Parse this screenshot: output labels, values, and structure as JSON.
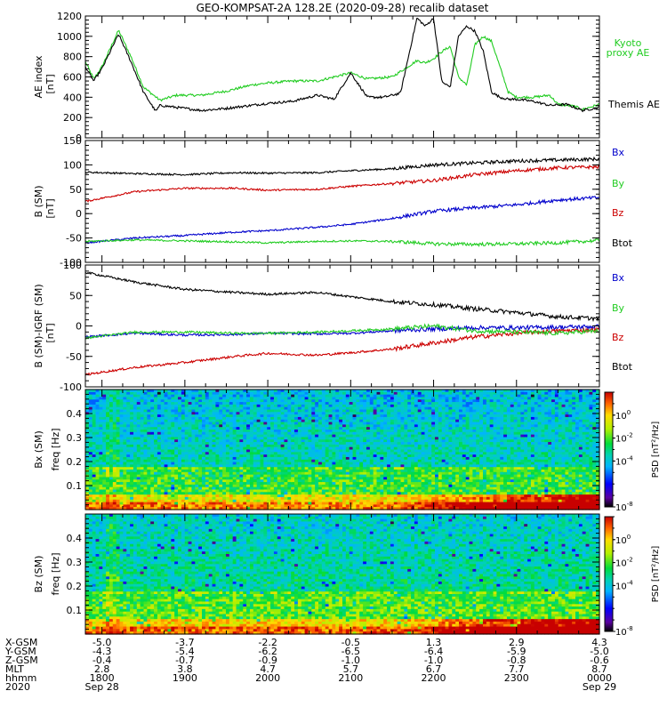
{
  "title": "GEO-KOMPSAT-2A 128.2E (2020-09-28) recalib dataset",
  "colors": {
    "bx": "#0000cc",
    "by": "#22cc22",
    "bz": "#cc0000",
    "btot": "#000000",
    "kyoto": "#22cc22",
    "themis": "#000000"
  },
  "chart_data": [
    {
      "type": "line",
      "ylabel": "AE index",
      "yunit": "[nT]",
      "ylim": [
        0,
        1200
      ],
      "yticks": [
        0,
        200,
        400,
        600,
        800,
        1000,
        1200
      ],
      "xlim": [
        17.8,
        24.0
      ],
      "grid": false,
      "legend_position": "right",
      "series": [
        {
          "name": "Kyoto proxy AE",
          "color": "green",
          "x": [
            17.8,
            17.9,
            18.0,
            18.2,
            18.35,
            18.5,
            18.7,
            18.9,
            19.2,
            19.5,
            19.8,
            20.0,
            20.3,
            20.6,
            20.9,
            21.0,
            21.2,
            21.5,
            21.8,
            21.9,
            22.0,
            22.1,
            22.2,
            22.3,
            22.4,
            22.5,
            22.6,
            22.7,
            22.8,
            22.9,
            23.0,
            23.2,
            23.4,
            23.5,
            23.7,
            23.8,
            24.0
          ],
          "y": [
            750,
            580,
            700,
            1060,
            800,
            500,
            370,
            420,
            420,
            460,
            520,
            540,
            560,
            560,
            620,
            640,
            580,
            600,
            760,
            740,
            780,
            850,
            900,
            600,
            520,
            920,
            1000,
            950,
            700,
            450,
            400,
            400,
            420,
            330,
            310,
            280,
            330
          ]
        },
        {
          "name": "Themis AE",
          "color": "black",
          "x": [
            17.8,
            17.9,
            18.0,
            18.2,
            18.35,
            18.5,
            18.65,
            18.7,
            18.9,
            19.2,
            19.5,
            19.8,
            20.0,
            20.3,
            20.6,
            20.8,
            21.0,
            21.2,
            21.4,
            21.6,
            21.8,
            21.9,
            22.0,
            22.1,
            22.2,
            22.3,
            22.4,
            22.5,
            22.6,
            22.7,
            22.8,
            22.9,
            23.0,
            23.2,
            23.4,
            23.6,
            23.8,
            24.0
          ],
          "y": [
            700,
            560,
            680,
            1020,
            750,
            450,
            260,
            320,
            300,
            270,
            290,
            320,
            340,
            360,
            420,
            380,
            640,
            400,
            400,
            440,
            1180,
            1100,
            1180,
            550,
            500,
            1000,
            1100,
            1050,
            850,
            450,
            400,
            380,
            380,
            360,
            320,
            330,
            270,
            300
          ]
        }
      ]
    },
    {
      "type": "line",
      "ylabel": "B (SM)",
      "yunit": "[nT]",
      "ylim": [
        -100,
        150
      ],
      "yticks": [
        -100,
        -50,
        0,
        50,
        100,
        150
      ],
      "xlim": [
        17.8,
        24.0
      ],
      "grid": false,
      "legend_position": "right",
      "series": [
        {
          "name": "Bx",
          "color": "blue",
          "x": [
            17.8,
            18.4,
            19.0,
            19.6,
            20.0,
            20.6,
            21.0,
            21.5,
            22.0,
            22.5,
            23.0,
            23.5,
            24.0
          ],
          "y": [
            -60,
            -50,
            -45,
            -38,
            -35,
            -28,
            -22,
            -10,
            5,
            12,
            18,
            28,
            33
          ]
        },
        {
          "name": "By",
          "color": "green",
          "x": [
            17.8,
            18.4,
            19.0,
            19.6,
            20.0,
            20.6,
            21.0,
            21.5,
            22.0,
            22.5,
            23.0,
            23.5,
            24.0
          ],
          "y": [
            -57,
            -54,
            -56,
            -58,
            -60,
            -57,
            -56,
            -57,
            -62,
            -63,
            -62,
            -60,
            -55
          ]
        },
        {
          "name": "Bz",
          "color": "red",
          "x": [
            17.8,
            18.4,
            19.0,
            19.6,
            20.0,
            20.6,
            21.0,
            21.5,
            22.0,
            22.5,
            23.0,
            23.5,
            24.0
          ],
          "y": [
            25,
            45,
            52,
            52,
            48,
            50,
            56,
            62,
            68,
            80,
            88,
            94,
            96
          ]
        },
        {
          "name": "Btot",
          "color": "black",
          "x": [
            17.8,
            18.4,
            19.0,
            19.6,
            20.0,
            20.6,
            21.0,
            21.5,
            22.0,
            22.5,
            23.0,
            23.5,
            24.0
          ],
          "y": [
            85,
            82,
            80,
            84,
            83,
            84,
            88,
            92,
            100,
            104,
            108,
            110,
            112
          ]
        }
      ]
    },
    {
      "type": "line",
      "ylabel": "B (SM)-IGRF (SM)",
      "yunit": "[nT]",
      "ylim": [
        -100,
        100
      ],
      "yticks": [
        -100,
        -50,
        0,
        50,
        100
      ],
      "xlim": [
        17.8,
        24.0
      ],
      "grid": false,
      "legend_position": "right",
      "series": [
        {
          "name": "Bx",
          "color": "blue",
          "x": [
            17.8,
            18.4,
            19.0,
            19.6,
            20.0,
            20.6,
            21.0,
            21.5,
            22.0,
            22.5,
            23.0,
            23.5,
            24.0
          ],
          "y": [
            -18,
            -12,
            -15,
            -14,
            -12,
            -13,
            -12,
            -8,
            -5,
            -3,
            -3,
            -2,
            -1
          ]
        },
        {
          "name": "By",
          "color": "green",
          "x": [
            17.8,
            18.4,
            19.0,
            19.6,
            20.0,
            20.6,
            21.0,
            21.5,
            22.0,
            22.5,
            23.0,
            23.5,
            24.0
          ],
          "y": [
            -20,
            -10,
            -10,
            -12,
            -12,
            -10,
            -8,
            -5,
            0,
            -8,
            -10,
            -12,
            -8
          ]
        },
        {
          "name": "Bz",
          "color": "red",
          "x": [
            17.8,
            18.4,
            19.0,
            19.6,
            20.0,
            20.6,
            21.0,
            21.5,
            22.0,
            22.5,
            23.0,
            23.5,
            24.0
          ],
          "y": [
            -80,
            -68,
            -60,
            -50,
            -45,
            -48,
            -44,
            -38,
            -28,
            -18,
            -12,
            -8,
            -6
          ]
        },
        {
          "name": "Btot",
          "color": "black",
          "x": [
            17.8,
            18.4,
            19.0,
            19.6,
            20.0,
            20.6,
            21.0,
            21.5,
            22.0,
            22.5,
            23.0,
            23.5,
            24.0
          ],
          "y": [
            88,
            72,
            60,
            55,
            52,
            55,
            48,
            40,
            35,
            28,
            22,
            15,
            12
          ]
        }
      ]
    },
    {
      "type": "heatmap",
      "ylabel": "Bx (SM)",
      "y2label": "freq",
      "yunit": "[Hz]",
      "ylim": [
        0,
        0.5
      ],
      "yticks": [
        0.1,
        0.2,
        0.3,
        0.4
      ],
      "xlim": [
        17.8,
        24.0
      ],
      "colorbar": {
        "label": "PSD [nT²/Hz]",
        "log10_range": [
          -8,
          2
        ],
        "tick_exponents": [
          0,
          -2,
          -4,
          -8
        ]
      }
    },
    {
      "type": "heatmap",
      "ylabel": "Bz (SM)",
      "y2label": "freq",
      "yunit": "[Hz]",
      "ylim": [
        0,
        0.5
      ],
      "yticks": [
        0.1,
        0.2,
        0.3,
        0.4
      ],
      "xlim": [
        17.8,
        24.0
      ],
      "colorbar": {
        "label": "PSD [nT²/Hz]",
        "log10_range": [
          -8,
          2
        ],
        "tick_exponents": [
          0,
          -2,
          -4,
          -8
        ]
      }
    }
  ],
  "legend_labels": {
    "ae_kyoto_1": "Kyoto",
    "ae_kyoto_2": "proxy AE",
    "ae_themis": "Themis AE",
    "bx": "Bx",
    "by": "By",
    "bz": "Bz",
    "btot": "Btot"
  },
  "time_axis": {
    "row_labels": [
      "X-GSM",
      "Y-GSM",
      "Z-GSM",
      "MLT",
      "hhmm",
      "2020"
    ],
    "tick_hours": [
      18,
      19,
      20,
      21,
      22,
      23,
      24
    ],
    "columns": [
      [
        "-5.0",
        "-4.3",
        "-0.4",
        "2.8",
        "1800",
        "Sep 28"
      ],
      [
        "-3.7",
        "-5.4",
        "-0.7",
        "3.8",
        "1900",
        ""
      ],
      [
        "-2.2",
        "-6.2",
        "-0.9",
        "4.7",
        "2000",
        ""
      ],
      [
        "-0.5",
        "-6.5",
        "-1.0",
        "5.7",
        "2100",
        ""
      ],
      [
        "1.3",
        "-6.4",
        "-1.0",
        "6.7",
        "2200",
        ""
      ],
      [
        "2.9",
        "-5.9",
        "-0.8",
        "7.7",
        "2300",
        ""
      ],
      [
        "4.3",
        "-5.0",
        "-0.6",
        "8.7",
        "0000",
        "Sep 29"
      ]
    ]
  }
}
